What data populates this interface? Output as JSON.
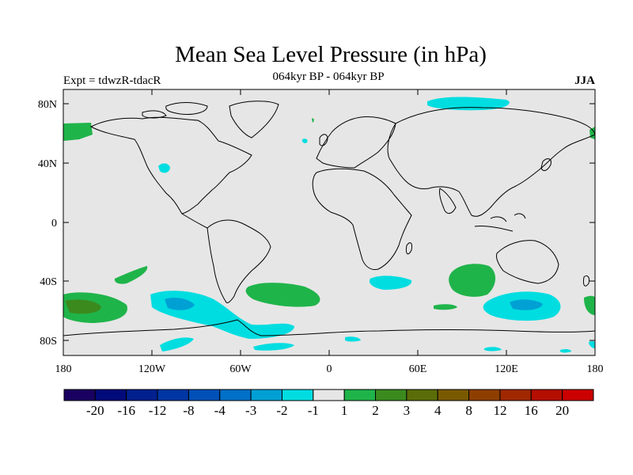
{
  "title": "Mean Sea Level Pressure (in hPa)",
  "left_label": "Expt = tdwzR-tdacR",
  "center_label": "064kyr BP - 064kyr BP",
  "right_label": "JJA",
  "map": {
    "lat_ticks": [
      "80N",
      "40N",
      "0",
      "40S",
      "80S"
    ],
    "lon_ticks": [
      "180",
      "120W",
      "60W",
      "0",
      "60E",
      "120E",
      "180"
    ],
    "background_color": "#e6e6e6",
    "coastline_color": "#000000"
  },
  "colorbar": {
    "colors": [
      "#1a0060",
      "#000a7a",
      "#00208e",
      "#0036a4",
      "#0050b8",
      "#0070c8",
      "#00a0d4",
      "#00dde0",
      "#e6e6e6",
      "#1fb44a",
      "#3b8a1e",
      "#5a6d08",
      "#7a5a00",
      "#8e3f00",
      "#a02800",
      "#b40e00",
      "#cc0000"
    ],
    "labels": [
      "-20",
      "-16",
      "-12",
      "-8",
      "-4",
      "-3",
      "-2",
      "-1",
      "1",
      "2",
      "3",
      "4",
      "8",
      "12",
      "16",
      "20"
    ]
  }
}
